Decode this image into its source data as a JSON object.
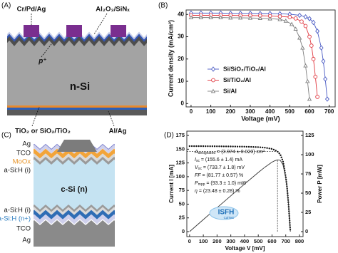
{
  "panels": {
    "a": "(A)",
    "b": "(B)",
    "c": "(C)",
    "d": "(D)"
  },
  "diagram_a": {
    "labels": {
      "contact": "Cr/Pd/Ag",
      "passivation": "Al₂O₃/SiNₓ",
      "emitter": "p⁺",
      "bulk": "n-Si",
      "rear_layer": "TiO₂ or SiO₂/TiO₂",
      "rear_contact": "Al/Ag"
    }
  },
  "diagram_c": {
    "layers": [
      "Ag",
      "TCO",
      "MoOx",
      "a-Si:H (i)",
      "c-Si (n)",
      "a-Si:H (i)",
      "a-Si:H (n+)",
      "TCO",
      "Ag"
    ]
  },
  "chart_data": [
    {
      "type": "line",
      "x_label": "Voltage (mV)",
      "y_label": "Current density (mA/cm²)",
      "xlim": [
        -25,
        730
      ],
      "ylim": [
        -1.5,
        42
      ],
      "xticks": [
        0,
        100,
        200,
        300,
        400,
        500,
        600,
        700
      ],
      "yticks": [
        0,
        10,
        20,
        30,
        40
      ],
      "legend": "center",
      "series": [
        {
          "name": "Si/SiO₂/TiO₂/Al",
          "color": "#4a5bc4",
          "marker": "diamond",
          "x": [
            0,
            50,
            100,
            150,
            200,
            250,
            300,
            350,
            400,
            450,
            500,
            550,
            580,
            600,
            620,
            640,
            660,
            670,
            680,
            690
          ],
          "values": [
            40.6,
            40.6,
            40.6,
            40.6,
            40.5,
            40.5,
            40.5,
            40.4,
            40.4,
            40.3,
            40.1,
            39.6,
            38.9,
            38.1,
            36.4,
            32.5,
            25,
            19,
            11,
            2
          ]
        },
        {
          "name": "Si/TiO₂/Al",
          "color": "#e0353d",
          "marker": "circle",
          "x": [
            0,
            50,
            100,
            150,
            200,
            250,
            300,
            350,
            400,
            450,
            500,
            530,
            560,
            580,
            600,
            610,
            620,
            630,
            640
          ],
          "values": [
            39.6,
            39.6,
            39.6,
            39.6,
            39.6,
            39.5,
            39.5,
            39.4,
            39.3,
            39.1,
            38.8,
            38.2,
            36.8,
            34.8,
            30,
            26,
            20,
            12,
            3
          ]
        },
        {
          "name": "Si/Al",
          "color": "#7f7f7f",
          "marker": "triangle",
          "x": [
            0,
            50,
            100,
            150,
            200,
            250,
            300,
            350,
            400,
            450,
            480,
            510,
            530,
            550,
            565,
            580,
            590,
            600
          ],
          "values": [
            38.6,
            38.6,
            38.6,
            38.6,
            38.5,
            38.5,
            38.4,
            38.3,
            38.1,
            37.8,
            37.1,
            35.6,
            33.5,
            29.5,
            25,
            17,
            10,
            2
          ]
        }
      ]
    },
    {
      "type": "line",
      "x_label": "Voltage V [mV]",
      "y_label": "Current I [mA]",
      "y2_label": "Power P [mW]",
      "xlim": [
        -20,
        826
      ],
      "ylim": [
        -9.1,
        182.9
      ],
      "y2lim": [
        -6.5,
        130.64
      ],
      "xticks": [
        0,
        100,
        200,
        300,
        400,
        500,
        600,
        700,
        800
      ],
      "yticks": [
        0,
        25,
        50,
        75,
        100,
        125,
        150,
        175
      ],
      "y2ticks": [
        0,
        25,
        50,
        75,
        100,
        125
      ],
      "series": [
        {
          "color": "#111111",
          "linestyle": "dotted",
          "x": [
            0,
            100,
            200,
            300,
            400,
            500,
            550,
            600,
            620,
            640,
            660,
            680,
            700,
            710,
            720,
            733.7
          ],
          "values": [
            155.6,
            155.5,
            155.3,
            155,
            154.6,
            153.8,
            152.8,
            150.5,
            148.5,
            145.8,
            140.5,
            128,
            100,
            79,
            50,
            0
          ]
        },
        {
          "color": "#333333",
          "axis": "y2",
          "x": [
            0,
            100,
            200,
            300,
            400,
            500,
            550,
            600,
            620,
            640,
            660,
            680,
            700,
            710,
            720,
            733.7
          ],
          "values": [
            0,
            15.6,
            31.1,
            46.5,
            61.8,
            76.9,
            84.0,
            90.3,
            92.1,
            93.3,
            92.7,
            87.0,
            70.0,
            56.1,
            36.0,
            0
          ]
        }
      ],
      "annotations": [
        {
          "symbol": "A",
          "sub": "designated",
          "text": " = (3.974 ± 0.020) cm²"
        },
        {
          "symbol": "I",
          "sub": "sc",
          "text": " = (155.6 ± 1.4) mA"
        },
        {
          "symbol": "V",
          "sub": "oc",
          "text": " = (733.7 ± 1.8) mV"
        },
        {
          "symbol": "FF",
          "text": " = (81.77 ± 0.57) %"
        },
        {
          "symbol": "P",
          "sub": "mpp",
          "text": " = (93.3 ± 1.0) mW"
        },
        {
          "symbol": "η",
          "text": " = (23.48 ± 0.28) %"
        }
      ],
      "logo": {
        "name": "ISFH",
        "sub": "CalTeC"
      }
    }
  ]
}
